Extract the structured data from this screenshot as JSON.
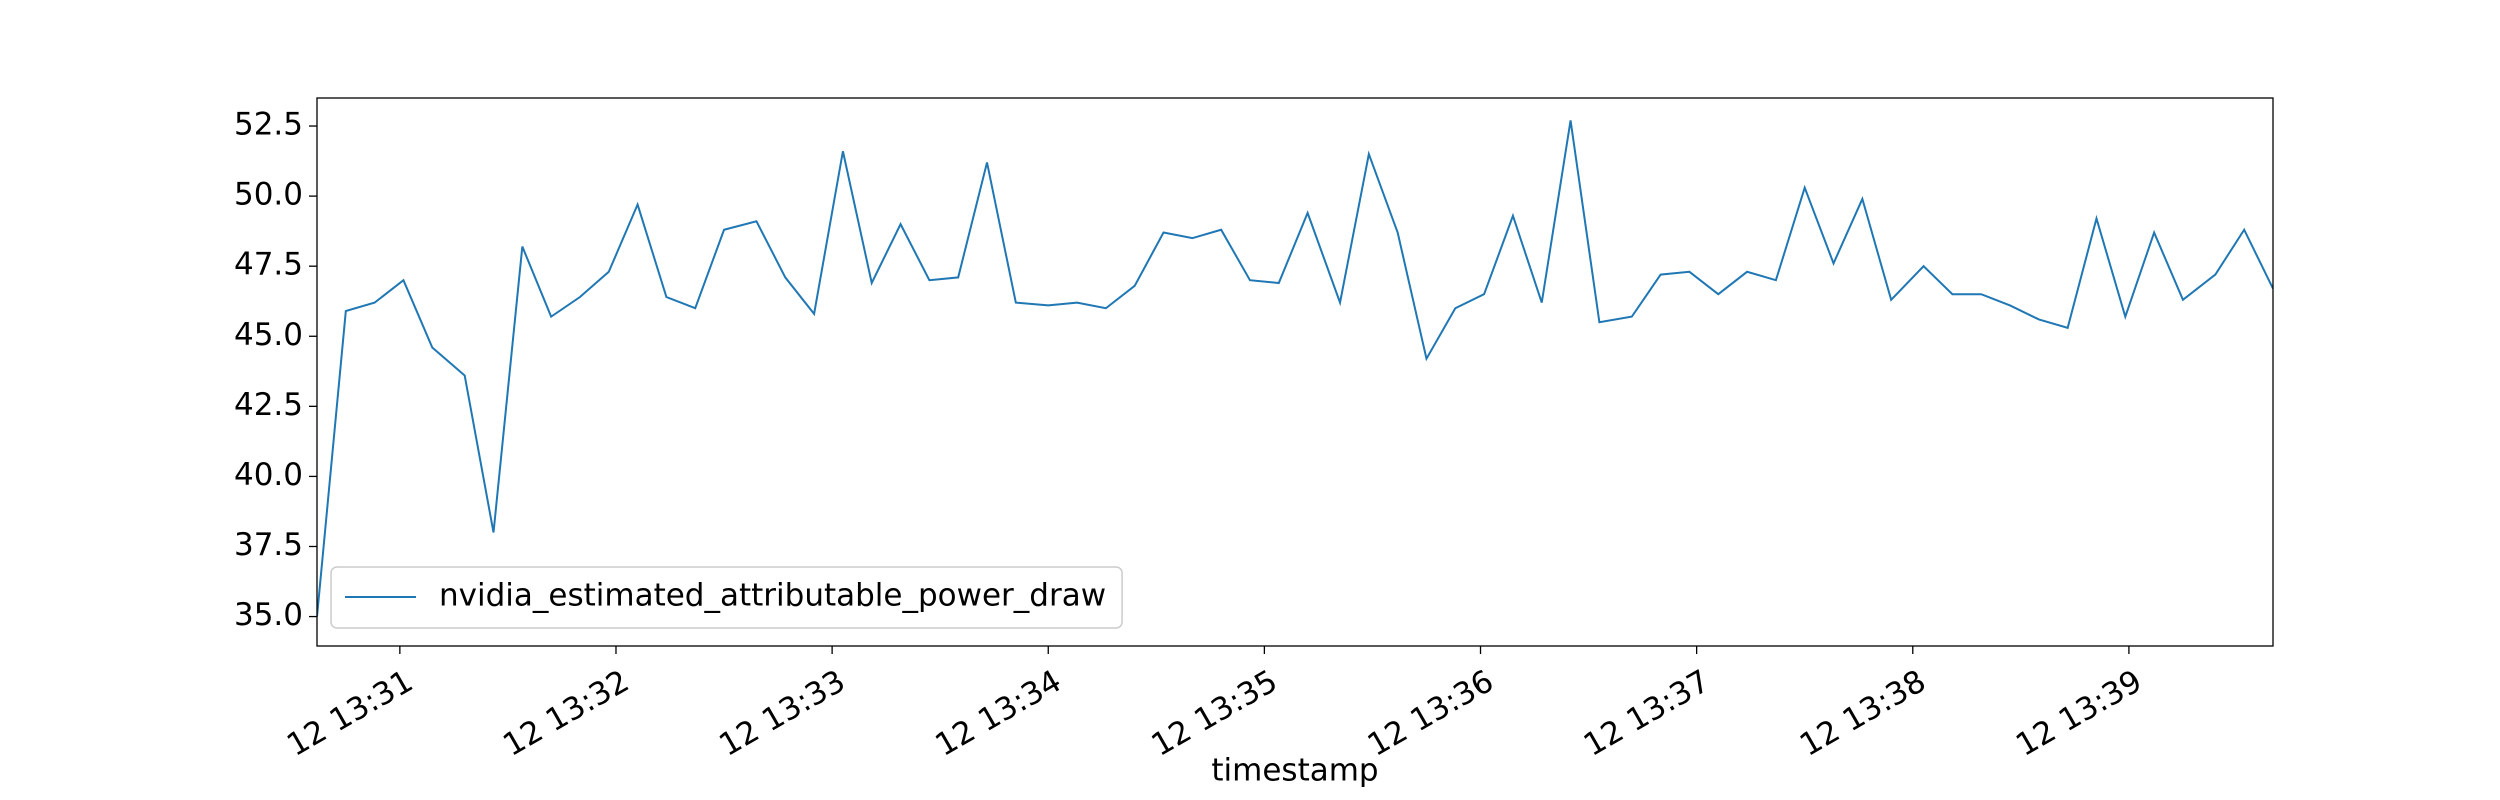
{
  "chart_data": {
    "type": "line",
    "x_label": "timestamp",
    "x": [
      "12 13:30:37",
      "12 13:30:45",
      "12 13:30:53",
      "12 13:31:01",
      "12 13:31:09",
      "12 13:31:18",
      "12 13:31:26",
      "12 13:31:34",
      "12 13:31:42",
      "12 13:31:50",
      "12 13:31:58",
      "12 13:32:06",
      "12 13:32:14",
      "12 13:32:22",
      "12 13:32:30",
      "12 13:32:39",
      "12 13:32:47",
      "12 13:32:55",
      "12 13:33:03",
      "12 13:33:11",
      "12 13:33:19",
      "12 13:33:27",
      "12 13:33:35",
      "12 13:33:43",
      "12 13:33:51",
      "12 13:34:00",
      "12 13:34:08",
      "12 13:34:16",
      "12 13:34:24",
      "12 13:34:32",
      "12 13:34:40",
      "12 13:34:48",
      "12 13:34:56",
      "12 13:35:04",
      "12 13:35:12",
      "12 13:35:21",
      "12 13:35:29",
      "12 13:35:37",
      "12 13:35:45",
      "12 13:35:53",
      "12 13:36:01",
      "12 13:36:09",
      "12 13:36:17",
      "12 13:36:25",
      "12 13:36:33",
      "12 13:36:42",
      "12 13:36:50",
      "12 13:36:58",
      "12 13:37:06",
      "12 13:37:14",
      "12 13:37:22",
      "12 13:37:30",
      "12 13:37:38",
      "12 13:37:46",
      "12 13:37:54",
      "12 13:38:03",
      "12 13:38:11",
      "12 13:38:19",
      "12 13:38:27",
      "12 13:38:35",
      "12 13:38:43",
      "12 13:38:51",
      "12 13:38:59",
      "12 13:39:07",
      "12 13:39:15",
      "12 13:39:24",
      "12 13:39:32",
      "12 13:39:40"
    ],
    "series": [
      {
        "name": "nvidia_estimated_attributable_power_draw",
        "color": "#1f77b4",
        "values": [
          35.0,
          45.9,
          46.2,
          47.0,
          44.6,
          43.6,
          38.0,
          48.2,
          45.7,
          46.4,
          47.3,
          49.7,
          46.4,
          46.0,
          48.8,
          49.1,
          47.1,
          45.8,
          51.6,
          46.9,
          49.0,
          47.0,
          47.1,
          51.2,
          46.2,
          46.1,
          46.2,
          46.0,
          46.8,
          48.7,
          48.5,
          48.8,
          47.0,
          46.9,
          49.4,
          46.2,
          51.5,
          48.7,
          44.2,
          46.0,
          46.5,
          49.3,
          46.2,
          52.7,
          45.5,
          45.7,
          47.2,
          47.3,
          46.5,
          47.3,
          47.0,
          50.3,
          47.6,
          49.9,
          46.3,
          47.5,
          46.5,
          46.5,
          46.1,
          45.6,
          45.3,
          49.2,
          45.7,
          48.7,
          46.3,
          47.2,
          48.8,
          46.7
        ]
      }
    ],
    "xlim": [
      "12 13:30:37",
      "12 13:39:40"
    ],
    "xticks": [
      {
        "value": "12 13:31:00",
        "label": "12 13:31"
      },
      {
        "value": "12 13:32:00",
        "label": "12 13:32"
      },
      {
        "value": "12 13:33:00",
        "label": "12 13:33"
      },
      {
        "value": "12 13:34:00",
        "label": "12 13:34"
      },
      {
        "value": "12 13:35:00",
        "label": "12 13:35"
      },
      {
        "value": "12 13:36:00",
        "label": "12 13:36"
      },
      {
        "value": "12 13:37:00",
        "label": "12 13:37"
      },
      {
        "value": "12 13:38:00",
        "label": "12 13:38"
      },
      {
        "value": "12 13:39:00",
        "label": "12 13:39"
      }
    ],
    "ylim": [
      33.95,
      53.5
    ],
    "yticks": [
      {
        "value": 35,
        "label": "35.0"
      },
      {
        "value": 37.5,
        "label": "37.5"
      },
      {
        "value": 40,
        "label": "40.0"
      },
      {
        "value": 42.5,
        "label": "42.5"
      },
      {
        "value": 45,
        "label": "45.0"
      },
      {
        "value": 47.5,
        "label": "47.5"
      },
      {
        "value": 50,
        "label": "50.0"
      },
      {
        "value": 52.5,
        "label": "52.5"
      }
    ],
    "legend": "lower left"
  }
}
